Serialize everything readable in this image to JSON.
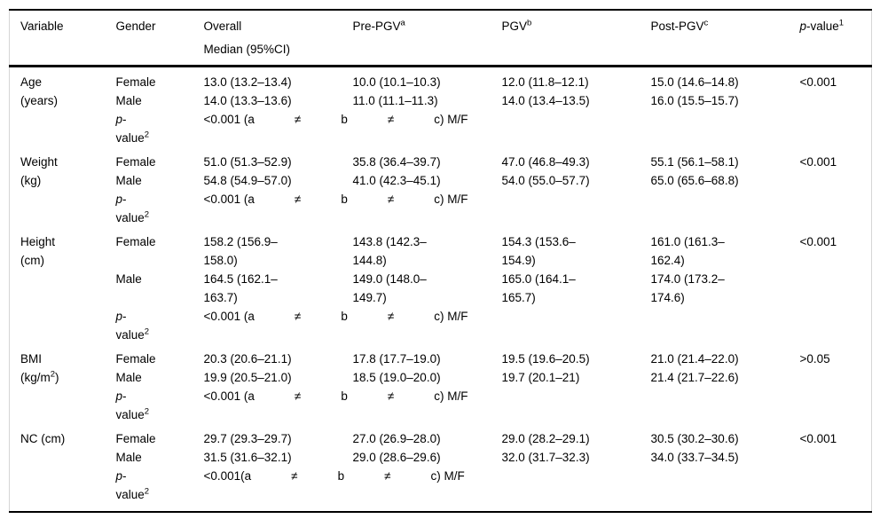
{
  "page": {
    "background_color": "#ffffff",
    "text_color": "#000000",
    "rule_color": "#000000",
    "side_border_color": "#d6d6d6"
  },
  "table": {
    "header": {
      "variable": "Variable",
      "gender": "Gender",
      "overall": "Overall",
      "overall_sub": "Median (95%CI)",
      "pre_pgv": {
        "label": "Pre-PGV",
        "sup": "a"
      },
      "pgv": {
        "label": "PGV",
        "sup": "b"
      },
      "post_pgv": {
        "label": "Post-PGV",
        "sup": "c"
      },
      "p_value": {
        "italic": "p",
        "rest": "-value",
        "sup": "1"
      }
    },
    "genders": {
      "female": "Female",
      "male": "Male"
    },
    "p_row_gender": {
      "italic": "p",
      "dash": "-",
      "word": "value",
      "sup": "2"
    },
    "blocks": [
      {
        "variable": {
          "name": "Age",
          "unit": "(years)",
          "unit_sup": "",
          "unit_close": ""
        },
        "female": {
          "overall": "13.0 (13.2–13.4)",
          "pre_pgv": "10.0 (10.1–10.3)",
          "pgv": "12.0 (11.8–12.1)",
          "post_pgv": "15.0 (14.6–14.8)"
        },
        "male": {
          "overall": "14.0 (13.3–13.6)",
          "pre_pgv": "11.0 (11.1–11.3)",
          "pgv": "14.0 (13.4–13.5)",
          "post_pgv": "16.0 (15.5–15.7)"
        },
        "p_value": "<0.001",
        "p_note": "<0.001 (a            ≠            b            ≠            c) M/F"
      },
      {
        "variable": {
          "name": "Weight",
          "unit": "(kg)",
          "unit_sup": "",
          "unit_close": ""
        },
        "female": {
          "overall": "51.0 (51.3–52.9)",
          "pre_pgv": "35.8 (36.4–39.7)",
          "pgv": "47.0 (46.8–49.3)",
          "post_pgv": "55.1 (56.1–58.1)"
        },
        "male": {
          "overall": "54.8 (54.9–57.0)",
          "pre_pgv": "41.0 (42.3–45.1)",
          "pgv": "54.0 (55.0–57.7)",
          "post_pgv": "65.0 (65.6–68.8)"
        },
        "p_value": "<0.001",
        "p_note": "<0.001 (a            ≠            b            ≠            c) M/F"
      },
      {
        "variable": {
          "name": "Height",
          "unit": "(cm)",
          "unit_sup": "",
          "unit_close": ""
        },
        "female": {
          "overall": "158.2 (156.9–\n158.0)",
          "pre_pgv": "143.8 (142.3–\n144.8)",
          "pgv": "154.3 (153.6–\n154.9)",
          "post_pgv": "161.0 (161.3–\n162.4)"
        },
        "male": {
          "overall": "164.5 (162.1–\n163.7)",
          "pre_pgv": "149.0 (148.0–\n149.7)",
          "pgv": "165.0 (164.1–\n165.7)",
          "post_pgv": "174.0 (173.2–\n174.6)"
        },
        "p_value": "<0.001",
        "p_note": "<0.001 (a            ≠            b            ≠            c) M/F"
      },
      {
        "variable": {
          "name": "BMI",
          "unit": "(kg/m",
          "unit_sup": "2",
          "unit_close": ")"
        },
        "female": {
          "overall": "20.3 (20.6–21.1)",
          "pre_pgv": "17.8 (17.7–19.0)",
          "pgv": "19.5 (19.6–20.5)",
          "post_pgv": "21.0 (21.4–22.0)"
        },
        "male": {
          "overall": "19.9 (20.5–21.0)",
          "pre_pgv": "18.5 (19.0–20.0)",
          "pgv": "19.7 (20.1–21)",
          "post_pgv": "21.4 (21.7–22.6)"
        },
        "p_value": ">0.05",
        "p_note": "<0.001 (a            ≠            b            ≠            c) M/F"
      },
      {
        "variable": {
          "name": "NC (cm)",
          "unit": "",
          "unit_sup": "",
          "unit_close": ""
        },
        "female": {
          "overall": "29.7 (29.3–29.7)",
          "pre_pgv": "27.0 (26.9–28.0)",
          "pgv": "29.0 (28.2–29.1)",
          "post_pgv": "30.5 (30.2–30.6)"
        },
        "male": {
          "overall": "31.5 (31.6–32.1)",
          "pre_pgv": "29.0 (28.6–29.6)",
          "pgv": "32.0 (31.7–32.3)",
          "post_pgv": "34.0 (33.7–34.5)"
        },
        "p_value": "<0.001",
        "p_note": "<0.001(a            ≠            b            ≠            c) M/F"
      }
    ]
  }
}
